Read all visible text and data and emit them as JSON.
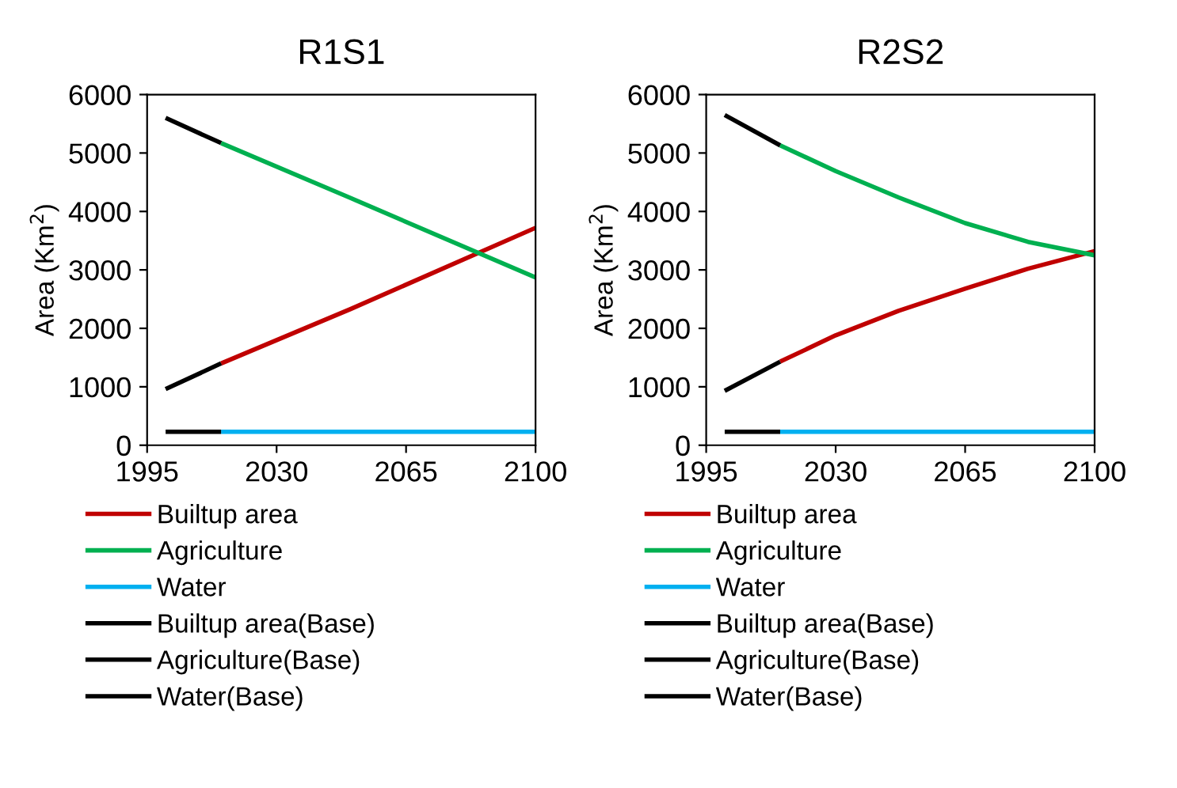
{
  "chart_data": [
    {
      "type": "line",
      "title": "R1S1",
      "ylabel": "Area (Km$^{2}$)",
      "xlim": [
        1995,
        2100
      ],
      "xticks": [
        1995,
        2030,
        2065,
        2100
      ],
      "ylim": [
        0,
        6000
      ],
      "yticks": [
        0,
        1000,
        2000,
        3000,
        4000,
        5000,
        6000
      ],
      "grid": false,
      "legend": "bottom",
      "series": [
        {
          "name": "Builtup area",
          "color": "#c00000",
          "x": [
            2015,
            2050,
            2100
          ],
          "values": [
            1400,
            2330,
            3720
          ]
        },
        {
          "name": "Agriculture",
          "color": "#00b050",
          "x": [
            2015,
            2050,
            2100
          ],
          "values": [
            5170,
            4230,
            2870
          ]
        },
        {
          "name": "Water",
          "color": "#00b0f0",
          "x": [
            2015,
            2100
          ],
          "values": [
            230,
            230
          ]
        },
        {
          "name": "Builtup area(Base)",
          "color": "#000000",
          "x": [
            2000,
            2015
          ],
          "values": [
            960,
            1400
          ]
        },
        {
          "name": "Agriculture(Base)",
          "color": "#000000",
          "x": [
            2000,
            2015
          ],
          "values": [
            5600,
            5170
          ]
        },
        {
          "name": "Water(Base)",
          "color": "#000000",
          "x": [
            2000,
            2015
          ],
          "values": [
            230,
            230
          ]
        }
      ]
    },
    {
      "type": "line",
      "title": "R2S2",
      "ylabel": "Area (Km$^{2}$)",
      "xlim": [
        1995,
        2100
      ],
      "xticks": [
        1995,
        2030,
        2065,
        2100
      ],
      "ylim": [
        0,
        6000
      ],
      "yticks": [
        0,
        1000,
        2000,
        3000,
        4000,
        5000,
        6000
      ],
      "grid": false,
      "legend": "bottom",
      "series": [
        {
          "name": "Builtup area",
          "color": "#c00000",
          "x": [
            2015,
            2030,
            2047,
            2065,
            2082,
            2100
          ],
          "values": [
            1430,
            1880,
            2300,
            2680,
            3020,
            3320
          ]
        },
        {
          "name": "Agriculture",
          "color": "#00b050",
          "x": [
            2015,
            2030,
            2047,
            2065,
            2082,
            2100
          ],
          "values": [
            5130,
            4690,
            4240,
            3800,
            3480,
            3250
          ]
        },
        {
          "name": "Water",
          "color": "#00b0f0",
          "x": [
            2015,
            2100
          ],
          "values": [
            230,
            230
          ]
        },
        {
          "name": "Builtup area(Base)",
          "color": "#000000",
          "x": [
            2000,
            2015
          ],
          "values": [
            930,
            1430
          ]
        },
        {
          "name": "Agriculture(Base)",
          "color": "#000000",
          "x": [
            2000,
            2015
          ],
          "values": [
            5650,
            5130
          ]
        },
        {
          "name": "Water(Base)",
          "color": "#000000",
          "x": [
            2000,
            2015
          ],
          "values": [
            230,
            230
          ]
        }
      ]
    }
  ]
}
